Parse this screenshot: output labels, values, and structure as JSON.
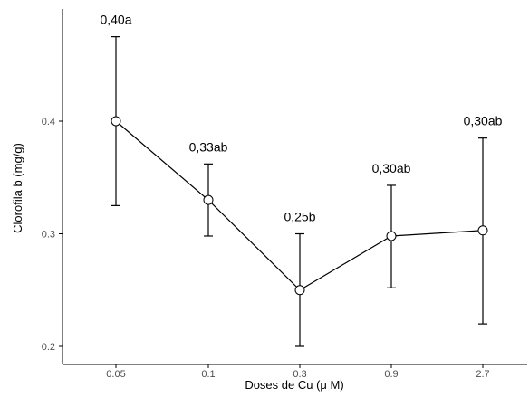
{
  "chart_data": {
    "type": "line",
    "xlabel": "Doses de Cu (μ M)",
    "ylabel": "Clorofila b (mg/g)",
    "categories": [
      "0.05",
      "0.1",
      "0.3",
      "0.9",
      "2.7"
    ],
    "y_ticks": [
      0.2,
      0.3,
      0.4
    ],
    "ylim": [
      0.19,
      0.49
    ],
    "grid": false,
    "legend": "none",
    "series": [
      {
        "values": [
          0.4,
          0.33,
          0.25,
          0.298,
          0.303
        ],
        "error_low": [
          0.325,
          0.298,
          0.2,
          0.252,
          0.22
        ],
        "error_high": [
          0.475,
          0.362,
          0.3,
          0.343,
          0.385
        ],
        "labels": [
          "0,40a",
          "0,33ab",
          "0,25b",
          "0,30ab",
          "0,30ab"
        ]
      }
    ],
    "colors": {
      "line": "#000000",
      "marker_fill": "#ffffff",
      "axis": "#000000"
    }
  }
}
